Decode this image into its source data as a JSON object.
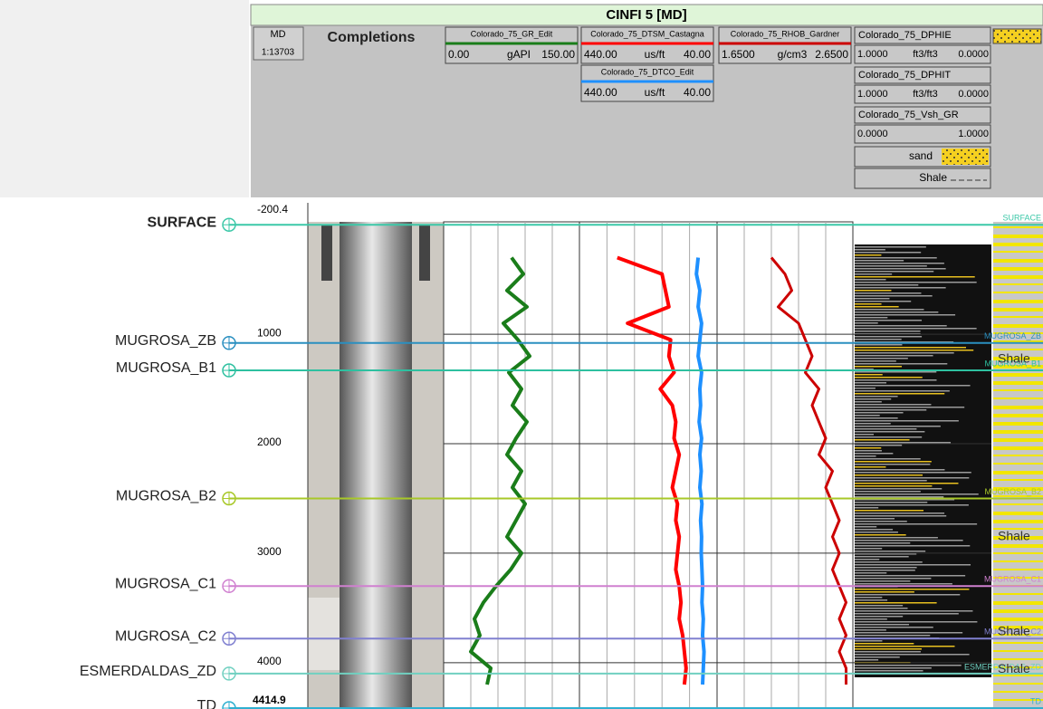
{
  "header": {
    "title": "CINFI 5 [MD]",
    "depth_label": "MD",
    "scale": "1:13703",
    "completions": "Completions"
  },
  "curves": [
    {
      "name": "Colorado_75_GR_Edit",
      "color": "#1a7d1a",
      "unit": "gAPI",
      "left": {
        "value": 0,
        "label": "0.00"
      },
      "right": {
        "value": 150,
        "label": "150.00"
      },
      "values": [
        75,
        88,
        70,
        92,
        66,
        82,
        95,
        72,
        86,
        76,
        92,
        80,
        70,
        86,
        76,
        90,
        80,
        70,
        86,
        74,
        58,
        44,
        34,
        40,
        30,
        52,
        48
      ]
    },
    {
      "name": "Colorado_75_DTSM_Castagna",
      "color": "#ff0000",
      "unit": "us/ft",
      "left": {
        "value": 440,
        "label": "440.00"
      },
      "right": {
        "value": 40,
        "label": "40.00"
      },
      "values": [
        330,
        200,
        190,
        180,
        300,
        175,
        180,
        165,
        205,
        170,
        160,
        165,
        150,
        160,
        170,
        155,
        160,
        150,
        155,
        160,
        150,
        145,
        150,
        140,
        135,
        130,
        135
      ]
    },
    {
      "name": "Colorado_75_DTCO_Edit",
      "color": "#1e90ff",
      "unit": "us/ft",
      "left": {
        "value": 440,
        "label": "440.00"
      },
      "right": {
        "value": 40,
        "label": "40.00"
      },
      "values": [
        95,
        100,
        90,
        95,
        85,
        90,
        95,
        85,
        90,
        88,
        92,
        85,
        90,
        86,
        90,
        84,
        88,
        85,
        86,
        84,
        82,
        84,
        80,
        82,
        78,
        80,
        82
      ]
    },
    {
      "name": "Colorado_75_RHOB_Gardner",
      "color": "#cc0000",
      "unit": "g/cm3",
      "left": {
        "value": 1.65,
        "label": "1.6500"
      },
      "right": {
        "value": 2.65,
        "label": "2.6500"
      },
      "values": [
        2.05,
        2.15,
        2.2,
        2.1,
        2.25,
        2.3,
        2.35,
        2.3,
        2.4,
        2.35,
        2.4,
        2.45,
        2.4,
        2.5,
        2.45,
        2.5,
        2.55,
        2.5,
        2.55,
        2.5,
        2.55,
        2.6,
        2.55,
        2.6,
        2.55,
        2.6,
        2.6
      ]
    }
  ],
  "depths": [
    300,
    450,
    600,
    750,
    900,
    1050,
    1200,
    1350,
    1500,
    1650,
    1800,
    1950,
    2100,
    2250,
    2400,
    2550,
    2700,
    2850,
    3000,
    3150,
    3300,
    3450,
    3600,
    3750,
    3900,
    4050,
    4200
  ],
  "porosity_curves": [
    {
      "name": "Colorado_75_DPHIE",
      "left": "1.0000",
      "unit": "ft3/ft3",
      "right": "0.0000"
    },
    {
      "name": "Colorado_75_DPHIT",
      "left": "1.0000",
      "unit": "ft3/ft3",
      "right": "0.0000"
    },
    {
      "name": "Colorado_75_Vsh_GR",
      "left": "0.0000",
      "right": "1.0000"
    }
  ],
  "lithology": [
    "sand",
    "Shale"
  ],
  "depth_axis": {
    "ylim": [
      -200.4,
      4414.9
    ],
    "ticks": [
      1000,
      2000,
      3000,
      4000
    ]
  },
  "tops": [
    {
      "name": "SURFACE",
      "depth": 0,
      "color": "#3cc8a8"
    },
    {
      "name": "MUGROSA_ZB",
      "depth": 1080,
      "color": "#2a8fc0"
    },
    {
      "name": "MUGROSA_B1",
      "depth": 1330,
      "color": "#2ec0a0"
    },
    {
      "name": "MUGROSA_B2",
      "depth": 2500,
      "color": "#a8c828"
    },
    {
      "name": "MUGROSA_C1",
      "depth": 3300,
      "color": "#d080d0"
    },
    {
      "name": "MUGROSA_C2",
      "depth": 3780,
      "color": "#8080d0"
    },
    {
      "name": "ESMERDALDAS_ZD",
      "depth": 4100,
      "color": "#70d0c0"
    },
    {
      "name": "TD",
      "depth": 4414.9,
      "color": "#30b0d0"
    }
  ],
  "lith_labels": [
    {
      "text": "Shale",
      "depth": 1230
    },
    {
      "text": "Shale",
      "depth": 2850
    },
    {
      "text": "Shale",
      "depth": 3720
    },
    {
      "text": "Shale",
      "depth": 4060
    }
  ]
}
